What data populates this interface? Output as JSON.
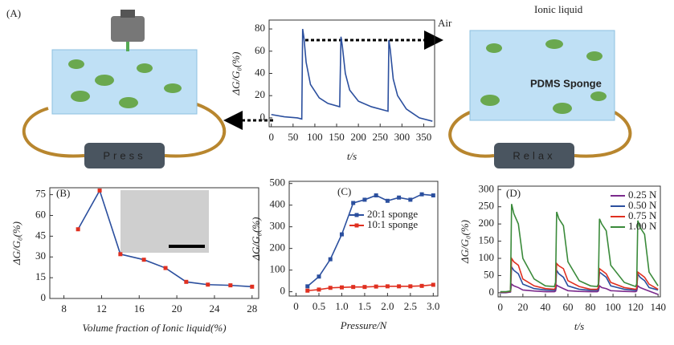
{
  "chart_data": [
    {
      "type": "line",
      "panel": "(A)",
      "annotations": [
        "Air",
        "Ionic liquid",
        "PDMS Sponge",
        "Press",
        "Relax"
      ],
      "xlabel": "t/s",
      "ylabel": "ΔG/G₀(%)",
      "x": [
        0,
        30,
        60,
        70,
        72,
        75,
        80,
        90,
        110,
        130,
        157,
        160,
        163,
        170,
        180,
        200,
        230,
        268,
        270,
        273,
        280,
        290,
        310,
        340,
        370
      ],
      "series": [
        {
          "color": "#2b4f9e",
          "values": [
            3,
            1,
            0,
            -1,
            80,
            72,
            50,
            30,
            18,
            13,
            10,
            73,
            65,
            40,
            25,
            15,
            10,
            6,
            70,
            62,
            35,
            20,
            8,
            0,
            -3
          ]
        }
      ],
      "xlim": [
        -5,
        375
      ],
      "ylim": [
        -8,
        88
      ],
      "xticks": [
        0,
        50,
        100,
        150,
        200,
        250,
        300,
        350
      ],
      "yticks": [
        0,
        20,
        40,
        60,
        80
      ]
    },
    {
      "type": "line",
      "panel": "(B)",
      "markers": true,
      "xlabel": "Volume fraction of Ionic liquid(%)",
      "ylabel": "ΔG/G₀(%)",
      "x": [
        9.5,
        11.8,
        14,
        16.5,
        18.8,
        21,
        23.3,
        25.7,
        28
      ],
      "series": [
        {
          "color": "#2b4f9e",
          "marker_color": "#e03020",
          "values": [
            50,
            78,
            32,
            28,
            22,
            12,
            10,
            9.5,
            8.5
          ]
        }
      ],
      "xlim": [
        6.5,
        28.7
      ],
      "ylim": [
        0,
        80
      ],
      "xticks": [
        8,
        12,
        16,
        20,
        24,
        28
      ],
      "yticks": [
        0,
        15,
        30,
        45,
        60,
        75
      ]
    },
    {
      "type": "line",
      "panel": "(C)",
      "markers": true,
      "legend": "upper-right",
      "xlabel": "Pressure/N",
      "ylabel": "ΔG/G₀(%)",
      "x": [
        0.25,
        0.5,
        0.75,
        1.0,
        1.25,
        1.5,
        1.75,
        2.0,
        2.25,
        2.5,
        2.75,
        3.0
      ],
      "series": [
        {
          "name": "20:1 sponge",
          "color": "#2b4f9e",
          "values": [
            25,
            70,
            150,
            265,
            410,
            425,
            445,
            420,
            435,
            425,
            450,
            445
          ]
        },
        {
          "name": "10:1 sponge",
          "color": "#e03020",
          "values": [
            5,
            10,
            18,
            20,
            22,
            22,
            24,
            25,
            25,
            25,
            27,
            32
          ]
        }
      ],
      "xlim": [
        -0.15,
        3.1
      ],
      "ylim": [
        -20,
        510
      ],
      "xticks": [
        0,
        0.5,
        {
          "value": 1,
          "label": "1.0"
        },
        1.5,
        {
          "value": 2,
          "label": "2.0"
        },
        2.5,
        {
          "value": 3,
          "label": "3.0"
        }
      ],
      "yticks": [
        0,
        100,
        200,
        300,
        400,
        500
      ]
    },
    {
      "type": "line",
      "panel": "(D)",
      "legend": "upper-right",
      "xlabel": "t/s",
      "ylabel": "ΔG/G₀(%)",
      "x": [
        0,
        5,
        9,
        10,
        12,
        16,
        20,
        30,
        40,
        48,
        49,
        50,
        52,
        56,
        60,
        70,
        80,
        86,
        87,
        88,
        90,
        94,
        98,
        110,
        120,
        121,
        122,
        124,
        128,
        132,
        140
      ],
      "series": [
        {
          "name": "0.25 N",
          "color": "#7b2a8c",
          "values": [
            0,
            0,
            2,
            25,
            20,
            15,
            8,
            5,
            3,
            3,
            5,
            22,
            18,
            12,
            6,
            4,
            3,
            3,
            5,
            20,
            15,
            12,
            6,
            4,
            3,
            5,
            20,
            15,
            10,
            5,
            -5
          ]
        },
        {
          "name": "0.50 N",
          "color": "#2b4f9e",
          "values": [
            1,
            1,
            3,
            75,
            65,
            55,
            25,
            12,
            8,
            7,
            10,
            65,
            55,
            45,
            20,
            10,
            7,
            7,
            10,
            60,
            55,
            45,
            20,
            10,
            7,
            10,
            55,
            45,
            35,
            15,
            8
          ]
        },
        {
          "name": "0.75 N",
          "color": "#e03020",
          "values": [
            2,
            2,
            4,
            100,
            90,
            80,
            40,
            20,
            12,
            10,
            15,
            85,
            78,
            70,
            35,
            18,
            10,
            10,
            15,
            70,
            65,
            55,
            30,
            15,
            10,
            12,
            60,
            55,
            45,
            25,
            10
          ]
        },
        {
          "name": "1.00 N",
          "color": "#3a8a3a",
          "values": [
            3,
            3,
            5,
            258,
            230,
            200,
            100,
            40,
            20,
            18,
            30,
            235,
            215,
            195,
            90,
            35,
            20,
            18,
            25,
            215,
            200,
            180,
            80,
            30,
            18,
            25,
            210,
            190,
            170,
            60,
            20
          ]
        }
      ],
      "xlim": [
        -2,
        142
      ],
      "ylim": [
        -12,
        310
      ],
      "xticks": [
        0,
        20,
        40,
        60,
        80,
        100,
        120,
        140
      ],
      "yticks": [
        0,
        50,
        100,
        150,
        200,
        250,
        300
      ]
    }
  ]
}
